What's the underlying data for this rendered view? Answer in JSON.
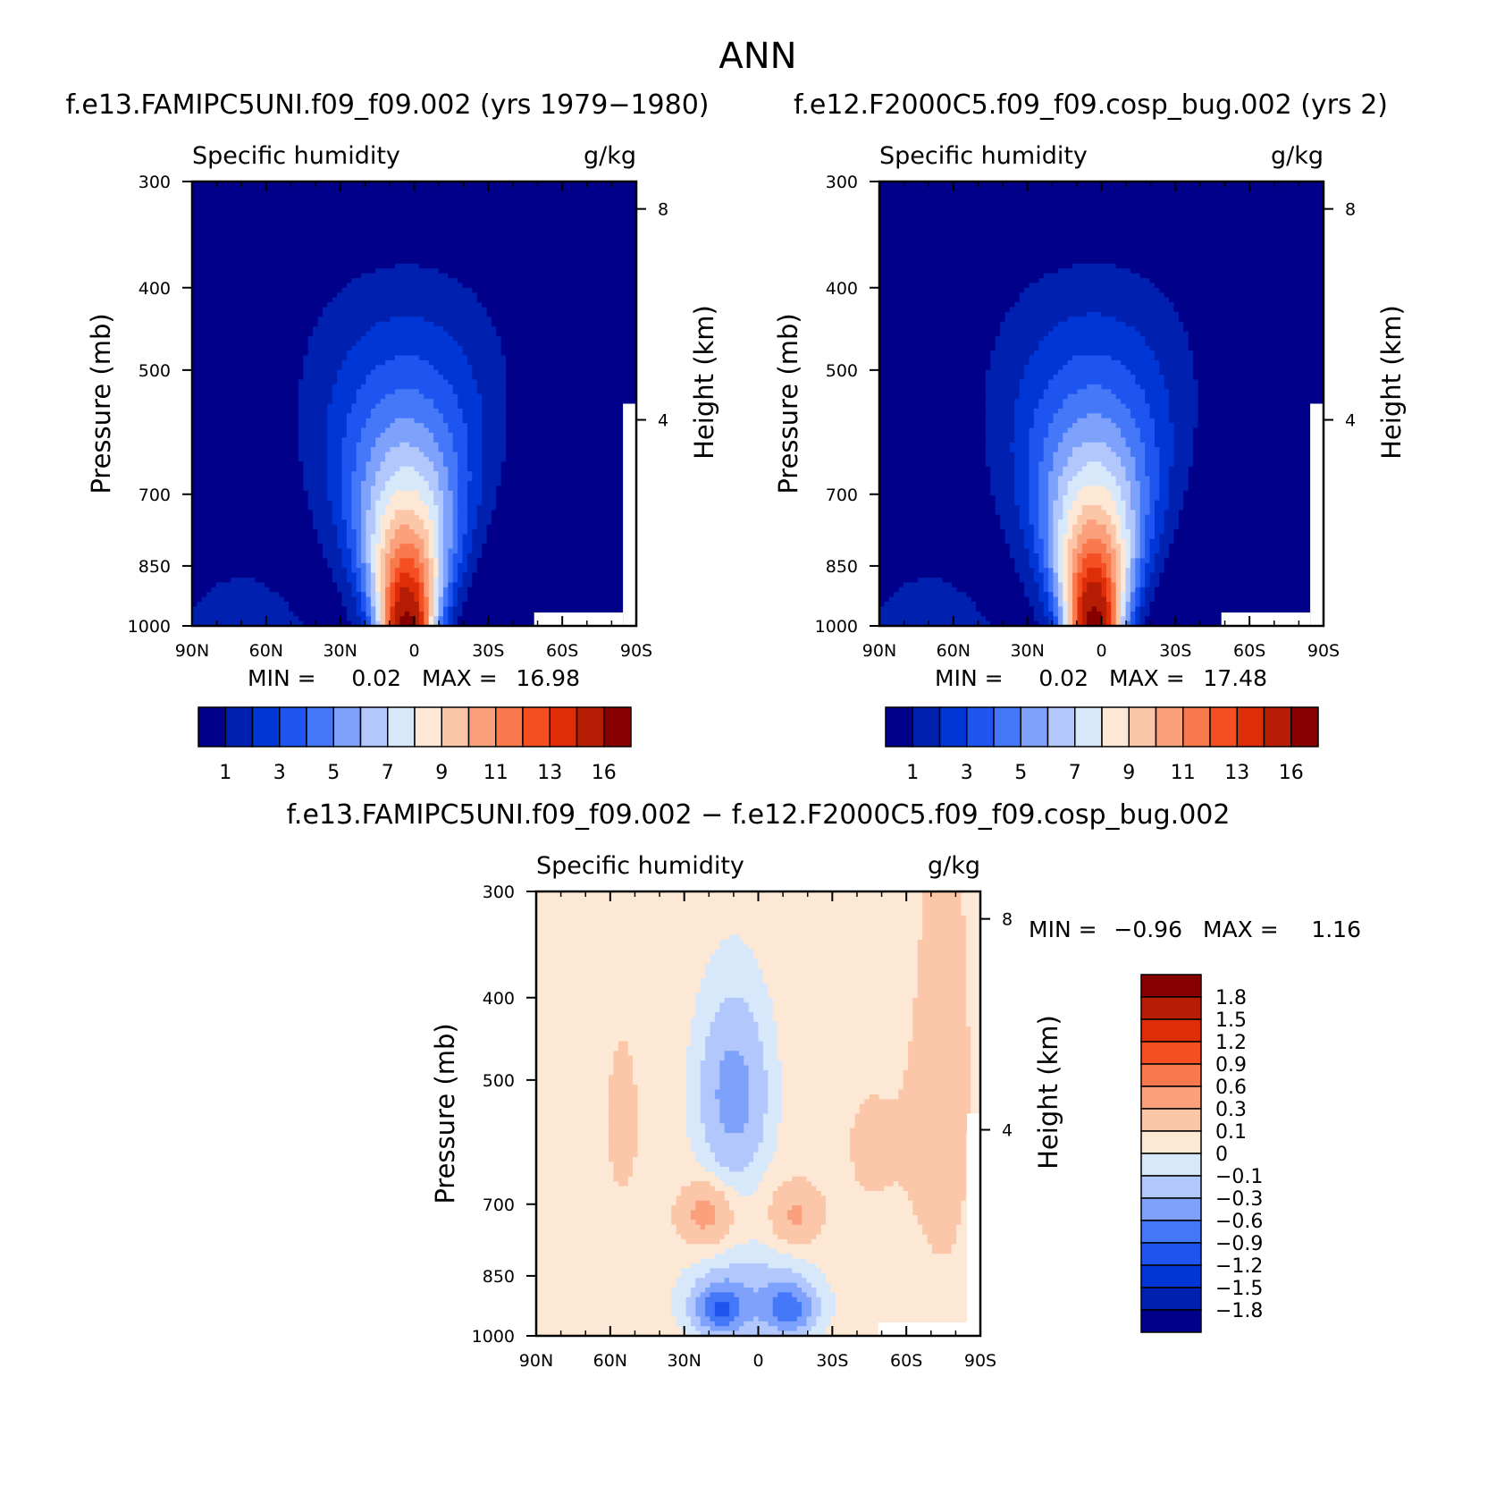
{
  "figure": {
    "title": "ANN"
  },
  "chart_data": [
    {
      "type": "heatmap",
      "title": "f.e13.FAMIPC5UNI.f09_f09.002 (yrs 1979-1980)",
      "left_string": "Specific humidity",
      "right_string": "g/kg",
      "xlabel": "",
      "ylabel": "Pressure (mb)",
      "ylabel_right": "Height (km)",
      "x_ticks": [
        "90N",
        "60N",
        "30N",
        "0",
        "30S",
        "60S",
        "90S"
      ],
      "y_ticks": [
        "300",
        "400",
        "500",
        "700",
        "850",
        "1000"
      ],
      "y_ticks_right": [
        "8",
        "4"
      ],
      "min_label": "MIN =",
      "min_value": "0.02",
      "max_label": "MAX =",
      "max_value": "16.98",
      "peak_value": 16.98,
      "levels": [
        1,
        2,
        3,
        4,
        5,
        6,
        7,
        8,
        9,
        10,
        11,
        12,
        13,
        14,
        16
      ],
      "colorbar_labels": [
        "1",
        "3",
        "5",
        "7",
        "9",
        "11",
        "13",
        "16"
      ],
      "colors": [
        "#00008a",
        "#0020b0",
        "#0036d6",
        "#1e54f0",
        "#4478f8",
        "#7ea2fb",
        "#b2c8fd",
        "#d8e8fb",
        "#fde8d6",
        "#fcc6a8",
        "#fba07c",
        "#f87a4c",
        "#f44e22",
        "#de2e08",
        "#b51d04",
        "#860000"
      ]
    },
    {
      "type": "heatmap",
      "title": "f.e12.F2000C5.f09_f09.cosp_bug.002 (yrs 2)",
      "left_string": "Specific humidity",
      "right_string": "g/kg",
      "xlabel": "",
      "ylabel": "Pressure (mb)",
      "ylabel_right": "Height (km)",
      "x_ticks": [
        "90N",
        "60N",
        "30N",
        "0",
        "30S",
        "60S",
        "90S"
      ],
      "y_ticks": [
        "300",
        "400",
        "500",
        "700",
        "850",
        "1000"
      ],
      "y_ticks_right": [
        "8",
        "4"
      ],
      "min_label": "MIN =",
      "min_value": "0.02",
      "max_label": "MAX =",
      "max_value": "17.48",
      "peak_value": 17.48,
      "levels": [
        1,
        2,
        3,
        4,
        5,
        6,
        7,
        8,
        9,
        10,
        11,
        12,
        13,
        14,
        16
      ],
      "colorbar_labels": [
        "1",
        "3",
        "5",
        "7",
        "9",
        "11",
        "13",
        "16"
      ],
      "colors": [
        "#00008a",
        "#0020b0",
        "#0036d6",
        "#1e54f0",
        "#4478f8",
        "#7ea2fb",
        "#b2c8fd",
        "#d8e8fb",
        "#fde8d6",
        "#fcc6a8",
        "#fba07c",
        "#f87a4c",
        "#f44e22",
        "#de2e08",
        "#b51d04",
        "#860000"
      ]
    },
    {
      "type": "heatmap",
      "title": "f.e13.FAMIPC5UNI.f09_f09.002 - f.e12.F2000C5.f09_f09.cosp_bug.002",
      "left_string": "Specific humidity",
      "right_string": "g/kg",
      "xlabel": "",
      "ylabel": "Pressure (mb)",
      "ylabel_right": "Height (km)",
      "x_ticks": [
        "90N",
        "60N",
        "30N",
        "0",
        "30S",
        "60S",
        "90S"
      ],
      "y_ticks": [
        "300",
        "400",
        "500",
        "700",
        "850",
        "1000"
      ],
      "y_ticks_right": [
        "8",
        "4"
      ],
      "min_label": "MIN =",
      "min_value": "-0.96",
      "max_label": "MAX =",
      "max_value": "1.16",
      "levels": [
        -1.8,
        -1.5,
        -1.2,
        -0.9,
        -0.6,
        -0.3,
        -0.1,
        0,
        0.1,
        0.3,
        0.6,
        0.9,
        1.2,
        1.5,
        1.8
      ],
      "colorbar_labels": [
        "1.8",
        "1.5",
        "1.2",
        "0.9",
        "0.6",
        "0.3",
        "0.1",
        "0",
        "-0.1",
        "-0.3",
        "-0.6",
        "-0.9",
        "-1.2",
        "-1.5",
        "-1.8"
      ],
      "colors": [
        "#00008a",
        "#0020b0",
        "#0036d6",
        "#1e54f0",
        "#4478f8",
        "#7ea2fb",
        "#b2c8fd",
        "#d8e8fb",
        "#fde8d6",
        "#fcc6a8",
        "#fba07c",
        "#f87a4c",
        "#f44e22",
        "#de2e08",
        "#b51d04",
        "#860000"
      ]
    }
  ]
}
